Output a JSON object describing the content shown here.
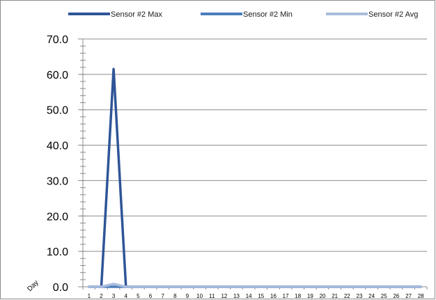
{
  "chart_data": {
    "type": "line",
    "xlabel": "Day",
    "ylabel": "",
    "ylim": [
      0,
      70
    ],
    "y_tick_labels": [
      "0.0",
      "10.0",
      "20.0",
      "30.0",
      "40.0",
      "50.0",
      "60.0",
      "70.0"
    ],
    "y_tick_values": [
      0,
      10,
      20,
      30,
      40,
      50,
      60,
      70
    ],
    "x": [
      1,
      2,
      3,
      4,
      5,
      6,
      7,
      8,
      9,
      10,
      11,
      12,
      13,
      14,
      15,
      16,
      17,
      18,
      19,
      20,
      21,
      22,
      23,
      24,
      25,
      26,
      27,
      28
    ],
    "grid": true,
    "legend_position": "top",
    "series": [
      {
        "name": "Sensor #2 Max",
        "color": "#2f5597",
        "values": [
          0,
          0,
          61.5,
          0,
          0,
          0,
          0,
          0,
          0,
          0,
          0,
          0,
          0,
          0,
          0,
          0,
          0,
          0,
          0,
          0,
          0,
          0,
          0,
          0,
          0,
          0,
          0,
          0
        ]
      },
      {
        "name": "Sensor #2 Min",
        "color": "#4a7ebb",
        "values": [
          0,
          0,
          0,
          0,
          0,
          0,
          0,
          0,
          0,
          0,
          0,
          0,
          0,
          0,
          0,
          0,
          0,
          0,
          0,
          0,
          0,
          0,
          0,
          0,
          0,
          0,
          0,
          0
        ]
      },
      {
        "name": "Sensor #2 Avg",
        "color": "#a9bcdc",
        "values": [
          0,
          0,
          0.8,
          0,
          0,
          0,
          0,
          0,
          0,
          0,
          0,
          0,
          0,
          0,
          0,
          0,
          0,
          0,
          0,
          0,
          0,
          0,
          0,
          0,
          0,
          0,
          0,
          0
        ]
      }
    ]
  }
}
